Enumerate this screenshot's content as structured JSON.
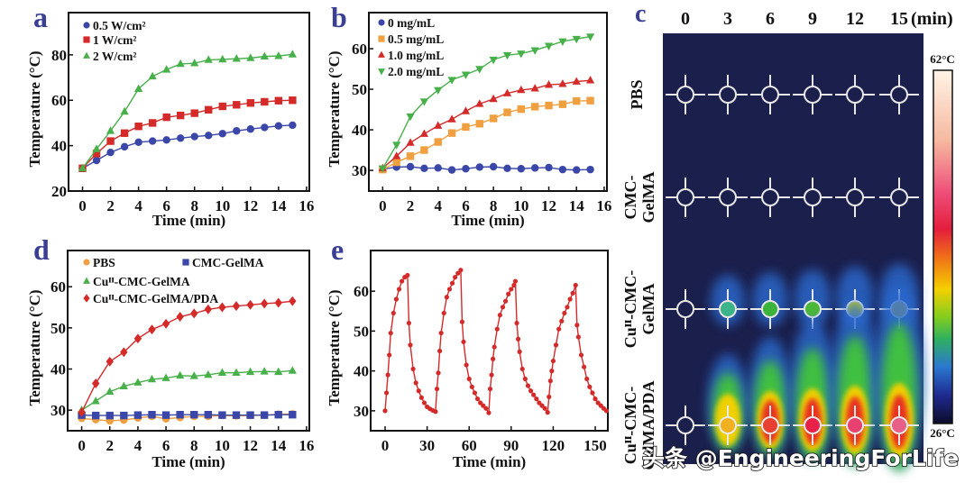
{
  "watermark": "头条 @EngineeringForLife",
  "colors": {
    "panel_letter": "#3a3f94",
    "blue": "#3a46a8",
    "red": "#d42a2a",
    "green": "#48b04a",
    "orange": "#f0a040",
    "thermal_bg": "#1b1f4c"
  },
  "chart_data": [
    {
      "panel": "a",
      "type": "line",
      "xlabel": "Time (min)",
      "ylabel": "Temperature (°C)",
      "xlim": [
        -1,
        16.2
      ],
      "ylim": [
        20,
        98.6
      ],
      "xticks": [
        0,
        2,
        4,
        6,
        8,
        10,
        12,
        14,
        16
      ],
      "yticks": [
        20,
        40,
        60,
        80
      ],
      "legend": "top-left",
      "x": [
        0,
        1,
        2,
        3,
        4,
        5,
        6,
        7,
        8,
        9,
        10,
        11,
        12,
        13,
        14,
        15
      ],
      "series": [
        {
          "name": "0.5 W/cm²",
          "marker": "circle",
          "color": "#3a46a8",
          "values": [
            30,
            33.5,
            37,
            39.5,
            41.5,
            42,
            42.5,
            43.3,
            44,
            44.5,
            45.3,
            46.5,
            47.3,
            48,
            48.7,
            49
          ]
        },
        {
          "name": "1 W/cm²",
          "marker": "square",
          "color": "#d42a2a",
          "values": [
            30,
            36.5,
            42,
            45.5,
            48.5,
            50,
            52.5,
            53.3,
            54.3,
            55.8,
            57.3,
            58,
            58.8,
            59.3,
            59.8,
            60
          ]
        },
        {
          "name": "2 W/cm²",
          "marker": "triangle-up",
          "color": "#48b04a",
          "values": [
            30,
            38.5,
            46.5,
            55,
            65,
            70.5,
            73.5,
            76,
            76.3,
            77.8,
            78,
            78.3,
            78.6,
            79.3,
            79.5,
            80.2
          ]
        }
      ]
    },
    {
      "panel": "b",
      "type": "line",
      "xlabel": "Time (min)",
      "ylabel": "Temperature (°C)",
      "xlim": [
        -1,
        16.2
      ],
      "ylim": [
        24.9,
        68.9
      ],
      "xticks": [
        0,
        2,
        4,
        6,
        8,
        10,
        12,
        14,
        16
      ],
      "yticks": [
        30,
        40,
        50,
        60
      ],
      "legend": "top-left",
      "x": [
        0,
        1,
        2,
        3,
        4,
        5,
        6,
        7,
        8,
        9,
        10,
        11,
        12,
        13,
        14,
        15
      ],
      "series": [
        {
          "name": "0 mg/mL",
          "marker": "circle",
          "color": "#3a46a8",
          "values": [
            30.3,
            30.8,
            30.9,
            30.5,
            30.6,
            30.1,
            30.4,
            30.8,
            30.9,
            30.5,
            30.4,
            30.6,
            30.7,
            30.2,
            30.1,
            30.2
          ]
        },
        {
          "name": "0.5 mg/mL",
          "marker": "square",
          "color": "#f0a040",
          "values": [
            30.2,
            32,
            33.5,
            35,
            37,
            39.2,
            40.7,
            41.5,
            42.8,
            44.3,
            45.1,
            45.7,
            46,
            46.3,
            47.1,
            47.2
          ]
        },
        {
          "name": "1.0 mg/mL",
          "marker": "triangle-up",
          "color": "#d42a2a",
          "values": [
            30.5,
            33.5,
            36.8,
            39,
            41,
            42.6,
            44.6,
            46.4,
            47.6,
            49,
            49.8,
            50.2,
            51.1,
            51.3,
            51.9,
            52.2
          ]
        },
        {
          "name": "2.0 mg/mL",
          "marker": "triangle-down",
          "color": "#48b04a",
          "values": [
            30.5,
            36.3,
            43.3,
            47,
            49.8,
            52.3,
            53.6,
            55,
            57.3,
            58.4,
            58.8,
            59.6,
            60.7,
            61.8,
            62.4,
            63
          ]
        }
      ]
    },
    {
      "panel": "c",
      "type": "heatmap",
      "column_labels": [
        "0",
        "3",
        "6",
        "9",
        "12",
        "15"
      ],
      "column_unit": "(min)",
      "row_labels": [
        [
          "PBS"
        ],
        [
          "CMC-",
          "GelMA"
        ],
        [
          "Cuᴵᴵ-CMC-",
          "GelMA"
        ],
        [
          "Cuᴵᴵ-CMC-",
          "GelMA/PDA"
        ]
      ],
      "colorbar": {
        "max_label": "62°C",
        "min_label": "26°C",
        "range": [
          26,
          62
        ]
      },
      "spot_colors": [
        [
          null,
          null,
          null,
          null,
          null,
          null
        ],
        [
          null,
          null,
          null,
          null,
          null,
          null
        ],
        [
          null,
          "#3cb48a",
          "#3cb43c",
          "#4cb83a",
          "#c8d420",
          "#e0c820"
        ],
        [
          null,
          "#f0b020",
          "#e84030",
          "#e8204a",
          "#e84070",
          "#e8608a"
        ]
      ]
    },
    {
      "panel": "d",
      "type": "line",
      "xlabel": "Time (min)",
      "ylabel": "Temperature (°C)",
      "xlim": [
        -1,
        16.2
      ],
      "ylim": [
        25,
        68.8
      ],
      "xticks": [
        0,
        2,
        4,
        6,
        8,
        10,
        12,
        14,
        16
      ],
      "yticks": [
        30,
        40,
        50,
        60
      ],
      "legend": "top",
      "x": [
        0,
        1,
        2,
        3,
        4,
        5,
        6,
        7,
        8,
        9,
        10,
        11,
        12,
        13,
        14,
        15
      ],
      "series": [
        {
          "name": "PBS",
          "marker": "circle",
          "color": "#f0a040",
          "values": [
            28,
            27.7,
            27.4,
            27.6,
            28.1,
            28.5,
            27.9,
            28.2,
            28.5,
            28.5,
            28.7,
            28.6,
            28.7,
            28.8,
            29,
            29.1
          ]
        },
        {
          "name": "CMC-GelMA",
          "marker": "square",
          "color": "#3a46a8",
          "values": [
            28.8,
            28.7,
            28.7,
            28.7,
            28.8,
            28.9,
            28.8,
            28.9,
            28.9,
            28.9,
            28.8,
            28.8,
            28.8,
            28.8,
            28.9,
            28.9
          ]
        },
        {
          "name": "Cuᴵᴵ-CMC-GelMA",
          "marker": "triangle-up",
          "color": "#48b04a",
          "values": [
            30,
            32.2,
            34.5,
            35.8,
            36.7,
            37.5,
            37.8,
            38.4,
            38.3,
            38.6,
            39.1,
            39.1,
            39.3,
            39.4,
            39.3,
            39.6
          ]
        },
        {
          "name": "Cuᴵᴵ-CMC-GelMA/PDA",
          "marker": "diamond",
          "color": "#d42a2a",
          "values": [
            29.5,
            36.5,
            41.8,
            44.1,
            47.4,
            49.6,
            51,
            52.7,
            53.5,
            54.5,
            55,
            55.3,
            55.6,
            55.9,
            56.1,
            56.5
          ]
        }
      ]
    },
    {
      "panel": "e",
      "type": "line",
      "xlabel": "Time (min)",
      "ylabel": "Temperature (°C)",
      "xlim": [
        -10.3,
        159
      ],
      "ylim": [
        25,
        70.2
      ],
      "xticks": [
        0,
        30,
        60,
        90,
        120,
        150
      ],
      "yticks": [
        30,
        40,
        50,
        60
      ],
      "legend": "none",
      "x": [
        0,
        1,
        2,
        3,
        4,
        6,
        8,
        10,
        12,
        14,
        16,
        17,
        18,
        20,
        22,
        24,
        26,
        28,
        30,
        32,
        34,
        36,
        37,
        38,
        39,
        40,
        42,
        44,
        46,
        48,
        50,
        52,
        54,
        55,
        56,
        58,
        60,
        62,
        64,
        66,
        68,
        70,
        72,
        74,
        75,
        76,
        77,
        78,
        80,
        82,
        84,
        86,
        88,
        90,
        92,
        93,
        94,
        95,
        96,
        98,
        100,
        102,
        104,
        106,
        108,
        110,
        112,
        114,
        116,
        117,
        118,
        119,
        120,
        122,
        124,
        126,
        128,
        130,
        132,
        134,
        136,
        137,
        138,
        140,
        142,
        144,
        146,
        148,
        150,
        152,
        154,
        156,
        158
      ],
      "series": [
        {
          "marker": "circle",
          "color": "#d42a2a",
          "values": [
            30,
            34.5,
            39,
            44,
            49.5,
            54.5,
            58,
            60.5,
            62.5,
            63.5,
            64,
            52,
            46.5,
            40.5,
            37,
            35,
            33.3,
            32,
            31,
            30.5,
            30.1,
            29.8,
            35.5,
            39.5,
            45,
            49.5,
            54.5,
            58.5,
            60.5,
            62,
            63.5,
            64.5,
            65.3,
            52.3,
            47.3,
            41.5,
            38,
            36,
            34.5,
            33,
            32,
            31.3,
            30.6,
            29.5,
            35.5,
            39,
            43,
            46,
            50.5,
            54,
            56,
            57.5,
            59.3,
            60.5,
            61.5,
            62.5,
            52,
            48,
            44.8,
            40.5,
            38,
            36.3,
            35,
            34,
            33,
            32,
            31.3,
            30.6,
            29.6,
            33.5,
            37.5,
            40,
            42.5,
            46.5,
            50.5,
            52.5,
            54.5,
            56,
            58,
            59.5,
            61.5,
            51.5,
            48.5,
            44,
            41,
            38,
            36,
            34.5,
            33,
            32,
            31.3,
            30.6,
            30
          ]
        }
      ]
    }
  ]
}
